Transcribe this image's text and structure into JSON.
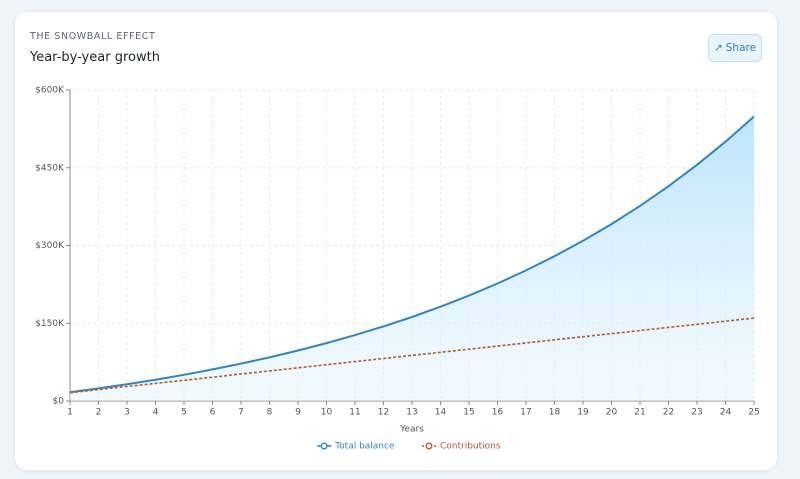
{
  "header": {
    "kicker": "THE SNOWBALL EFFECT",
    "title": "Year-by-year growth",
    "share": "Share"
  },
  "chart_data": {
    "type": "line",
    "x": [
      1,
      2,
      3,
      4,
      5,
      6,
      7,
      8,
      9,
      10,
      11,
      12,
      13,
      14,
      15,
      16,
      17,
      18,
      19,
      20,
      21,
      22,
      23,
      24,
      25
    ],
    "xlim": [
      1,
      25
    ],
    "xticks": [
      1,
      2,
      3,
      4,
      5,
      6,
      7,
      8,
      9,
      10,
      11,
      12,
      13,
      14,
      15,
      16,
      17,
      18,
      19,
      20,
      21,
      22,
      23,
      24,
      25
    ],
    "xlabel": "Years",
    "ylim": [
      0,
      600000
    ],
    "yticks": [
      {
        "value": 0,
        "label": "$0"
      },
      {
        "value": 150000,
        "label": "$150K"
      },
      {
        "value": 300000,
        "label": "$300K"
      },
      {
        "value": 450000,
        "label": "$450K"
      },
      {
        "value": 600000,
        "label": "$600K"
      }
    ],
    "grid": true,
    "series": [
      {
        "name": "Total balance",
        "color": "#2b87c8",
        "area": true,
        "values": [
          16850,
          24280,
          32350,
          41100,
          50590,
          60890,
          72060,
          84190,
          97350,
          111620,
          127110,
          143910,
          162140,
          181930,
          203390,
          226680,
          251950,
          279370,
          309110,
          341380,
          376400,
          414390,
          455620,
          500350,
          548880
        ]
      },
      {
        "name": "Contributions",
        "color": "#c0552a",
        "dashed": true,
        "values": [
          16000,
          22000,
          28000,
          34000,
          40000,
          46000,
          52000,
          58000,
          64000,
          70000,
          76000,
          82000,
          88000,
          94000,
          100000,
          106000,
          112000,
          118000,
          124000,
          130000,
          136000,
          142000,
          148000,
          154000,
          160000
        ]
      }
    ]
  }
}
